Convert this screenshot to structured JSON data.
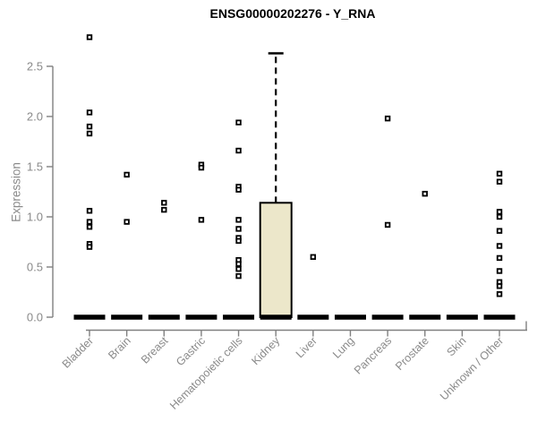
{
  "title": "ENSG00000202276 - Y_RNA",
  "colors": {
    "box_fill": "#ECE7CA",
    "box_stroke": "#000000",
    "point_color": "#000000",
    "axis_line": "#808080",
    "axis_text": "#8a8a8a",
    "title_color": "#000000"
  },
  "chart_data": {
    "type": "boxplot",
    "title": "ENSG00000202276 - Y_RNA",
    "xlabel": "",
    "ylabel": "Expression",
    "ylim": [
      0,
      2.8
    ],
    "yticks": [
      0.0,
      0.5,
      1.0,
      1.5,
      2.0,
      2.5
    ],
    "grid": false,
    "legend": null,
    "categories": [
      "Bladder",
      "Brain",
      "Breast",
      "Gastric",
      "Hematopoietic cells",
      "Kidney",
      "Liver",
      "Lung",
      "Pancreas",
      "Prostate",
      "Skin",
      "Unknown / Other"
    ],
    "series": [
      {
        "category": "Bladder",
        "median": 0,
        "q1": 0,
        "q3": 0,
        "whisker_high": null,
        "points": [
          2.79,
          2.04,
          1.9,
          1.83,
          1.06,
          0.95,
          0.9,
          0.73,
          0.7
        ]
      },
      {
        "category": "Brain",
        "median": 0,
        "q1": 0,
        "q3": 0,
        "whisker_high": null,
        "points": [
          1.42,
          0.95
        ]
      },
      {
        "category": "Breast",
        "median": 0,
        "q1": 0,
        "q3": 0,
        "whisker_high": null,
        "points": [
          1.14,
          1.07
        ]
      },
      {
        "category": "Gastric",
        "median": 0,
        "q1": 0,
        "q3": 0,
        "whisker_high": null,
        "points": [
          1.52,
          1.49,
          0.97
        ]
      },
      {
        "category": "Hematopoietic cells",
        "median": 0,
        "q1": 0,
        "q3": 0,
        "whisker_high": null,
        "points": [
          1.94,
          1.66,
          1.3,
          1.27,
          0.97,
          0.88,
          0.79,
          0.76,
          0.57,
          0.53,
          0.48,
          0.41
        ]
      },
      {
        "category": "Kidney",
        "median": 0,
        "q1": 0,
        "q3": 1.14,
        "whisker_high": 2.63,
        "points": []
      },
      {
        "category": "Liver",
        "median": 0,
        "q1": 0,
        "q3": 0,
        "whisker_high": null,
        "points": [
          0.6
        ]
      },
      {
        "category": "Lung",
        "median": 0,
        "q1": 0,
        "q3": 0,
        "whisker_high": null,
        "points": []
      },
      {
        "category": "Pancreas",
        "median": 0,
        "q1": 0,
        "q3": 0,
        "whisker_high": null,
        "points": [
          1.98,
          0.92
        ]
      },
      {
        "category": "Prostate",
        "median": 0,
        "q1": 0,
        "q3": 0,
        "whisker_high": null,
        "points": [
          1.23
        ]
      },
      {
        "category": "Skin",
        "median": 0,
        "q1": 0,
        "q3": 0,
        "whisker_high": null,
        "points": []
      },
      {
        "category": "Unknown / Other",
        "median": 0,
        "q1": 0,
        "q3": 0,
        "whisker_high": null,
        "points": [
          1.43,
          1.35,
          1.05,
          1.0,
          0.86,
          0.71,
          0.59,
          0.46,
          0.35,
          0.31,
          0.23
        ]
      }
    ]
  }
}
